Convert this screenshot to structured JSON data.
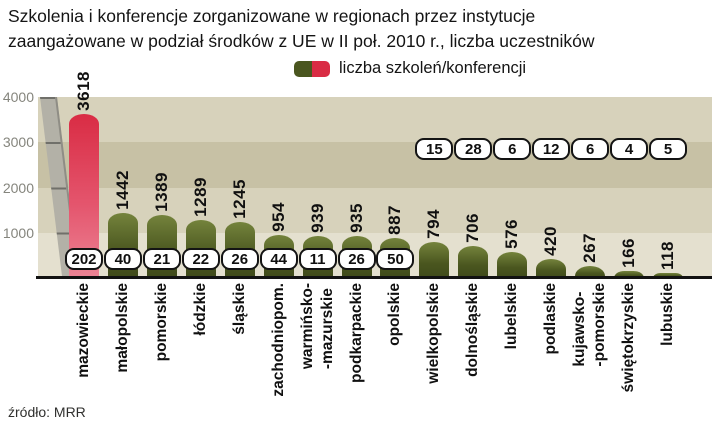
{
  "title": {
    "line1": "Szkolenia i konferencje zorganizowane w regionach przez instytucje",
    "line2": "zaangażowane w podział środków z UE w II poł. 2010 r., liczba uczestników"
  },
  "legend": {
    "label": "liczba szkoleń/konferencji"
  },
  "source": "źródło: MRR",
  "colors": {
    "band_a": "#d7d2bb",
    "band_b": "#c7c1a5",
    "band_c": "#e4e0cf",
    "wall": "#b3b1a7",
    "wall_tick": "#70706a",
    "bar_green_start": "#74833c",
    "bar_green_mid": "#4a561f",
    "bar_green_end": "#3f4a1a",
    "bar_red_start": "#d92c44",
    "bar_red_mid": "#e4556d",
    "bar_red_end": "#ec8495",
    "axis_text": "#85857d"
  },
  "chart_data": {
    "type": "bar",
    "title": "Szkolenia i konferencje zorganizowane w regionach przez instytucje zaangażowane w podział środków z UE w II poł. 2010 r., liczba uczestników",
    "legend": "liczba szkoleń/konferencji",
    "source": "źródło: MRR",
    "ylim": [
      0,
      4000
    ],
    "yticks": [
      4000,
      3000,
      2000,
      1000
    ],
    "categories": [
      "mazowieckie",
      "małopolskie",
      "pomorskie",
      "łódzkie",
      "śląskie",
      "zachodniopom.",
      "warmińsko--mazurskie",
      "podkarpackie",
      "opolskie",
      "wielkopolskie",
      "dolnośląskie",
      "lubelskie",
      "podlaskie",
      "kujawsko--pomorskie",
      "świętokrzyskie",
      "lubuskie"
    ],
    "category_lines": [
      [
        "mazowieckie"
      ],
      [
        "małopolskie"
      ],
      [
        "pomorskie"
      ],
      [
        "łódzkie"
      ],
      [
        "śląskie"
      ],
      [
        "zachodniopom."
      ],
      [
        "warmińsko-",
        "-mazurskie"
      ],
      [
        "podkarpackie"
      ],
      [
        "opolskie"
      ],
      [
        "wielkopolskie"
      ],
      [
        "dolnośląskie"
      ],
      [
        "lubelskie"
      ],
      [
        "podlaskie"
      ],
      [
        "kujawsko-",
        "-pomorskie"
      ],
      [
        "świętokrzyskie"
      ],
      [
        "lubuskie"
      ]
    ],
    "series": [
      {
        "name": "liczba uczestników",
        "values": [
          3618,
          1442,
          1389,
          1289,
          1245,
          954,
          939,
          935,
          887,
          794,
          706,
          576,
          420,
          267,
          166,
          118
        ]
      },
      {
        "name": "liczba szkoleń/konferencji",
        "values": [
          202,
          40,
          21,
          22,
          26,
          44,
          11,
          26,
          50,
          15,
          28,
          6,
          12,
          6,
          4,
          5
        ]
      }
    ],
    "badge_rows": [
      "low",
      "low",
      "low",
      "low",
      "low",
      "low",
      "low",
      "low",
      "low",
      "high",
      "high",
      "high",
      "high",
      "high",
      "high",
      "high"
    ],
    "highlight_index": 0
  }
}
